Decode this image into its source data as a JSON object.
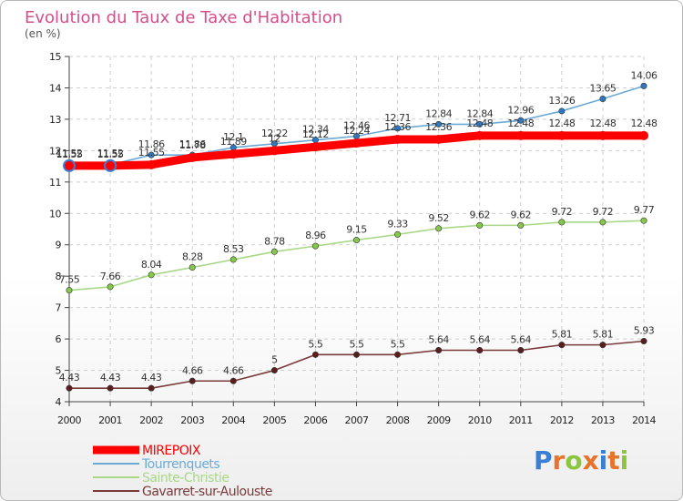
{
  "title": "Evolution du Taux de Taxe d'Habitation",
  "subtitle": "(en %)",
  "brand": {
    "letters": [
      "P",
      "r",
      "o",
      "x",
      "i",
      "t",
      "i"
    ],
    "colors": [
      "#3a7fd5",
      "#e8732b",
      "#8cc63f",
      "#e8732b",
      "#3a7fd5",
      "#e8732b",
      "#8cc63f"
    ]
  },
  "chart_data": {
    "type": "line",
    "title": "Evolution du Taux de Taxe d'Habitation",
    "ylabel": "(en %)",
    "xlabel": "",
    "ylim": [
      4,
      15
    ],
    "yticks": [
      "4",
      "5",
      "6",
      "7",
      "8",
      "9",
      "10",
      "11",
      "12",
      "13",
      "14",
      "15"
    ],
    "grid": true,
    "legend": "bottom-left",
    "x": [
      "2000",
      "2001",
      "2002",
      "2003",
      "2004",
      "2005",
      "2006",
      "2007",
      "2008",
      "2009",
      "2010",
      "2011",
      "2012",
      "2013",
      "2014"
    ],
    "series": [
      {
        "name": "Tourrenquets",
        "color": "#6baad6",
        "marker": "#2e78c0",
        "values": [
          11.55,
          11.55,
          11.86,
          11.86,
          12.1,
          12.22,
          12.34,
          12.46,
          12.71,
          12.84,
          12.84,
          12.96,
          13.26,
          13.65,
          14.06
        ],
        "labels": [
          "11.55",
          "11.55",
          "11.86",
          "11.86",
          "12.1",
          "12.22",
          "12.34",
          "12.46",
          "12.71",
          "12.84",
          "12.84",
          "12.96",
          "13.26",
          "13.65",
          "14.06"
        ]
      },
      {
        "name": "Sainte-Christie",
        "color": "#a8d888",
        "marker": "#86c84a",
        "values": [
          7.55,
          7.66,
          8.04,
          8.28,
          8.53,
          8.78,
          8.96,
          9.15,
          9.33,
          9.52,
          9.62,
          9.62,
          9.72,
          9.72,
          9.77
        ],
        "labels": [
          "7.55",
          "7.66",
          "8.04",
          "8.28",
          "8.53",
          "8.78",
          "8.96",
          "9.15",
          "9.33",
          "9.52",
          "9.62",
          "9.62",
          "9.72",
          "9.72",
          "9.77"
        ]
      },
      {
        "name": "Gavarret-sur-Aulouste",
        "color": "#7a3a3a",
        "marker": "#5a1e1e",
        "values": [
          4.43,
          4.43,
          4.43,
          4.66,
          4.66,
          5,
          5.5,
          5.5,
          5.5,
          5.64,
          5.64,
          5.64,
          5.81,
          5.81,
          5.93
        ],
        "labels": [
          "4.43",
          "4.43",
          "4.43",
          "4.66",
          "4.66",
          "5",
          "5.5",
          "5.5",
          "5.5",
          "5.64",
          "5.64",
          "5.64",
          "5.81",
          "5.81",
          "5.93"
        ]
      },
      {
        "name": "MIREPOIX",
        "color": "#ff0000",
        "marker": "#ff0000",
        "thick": true,
        "values": [
          11.52,
          11.52,
          11.55,
          11.78,
          11.89,
          12,
          12.12,
          12.24,
          12.36,
          12.36,
          12.48,
          12.48,
          12.48,
          12.48,
          12.48
        ],
        "labels": [
          "11.52",
          "11.52",
          "11.55",
          "11.78",
          "11.89",
          "12",
          "12.12",
          "12.24",
          "12.36",
          "12.36",
          "12.48",
          "12.48",
          "12.48",
          "12.48",
          "12.48"
        ]
      }
    ],
    "legend_order": [
      "MIREPOIX",
      "Tourrenquets",
      "Sainte-Christie",
      "Gavarret-sur-Aulouste"
    ]
  }
}
